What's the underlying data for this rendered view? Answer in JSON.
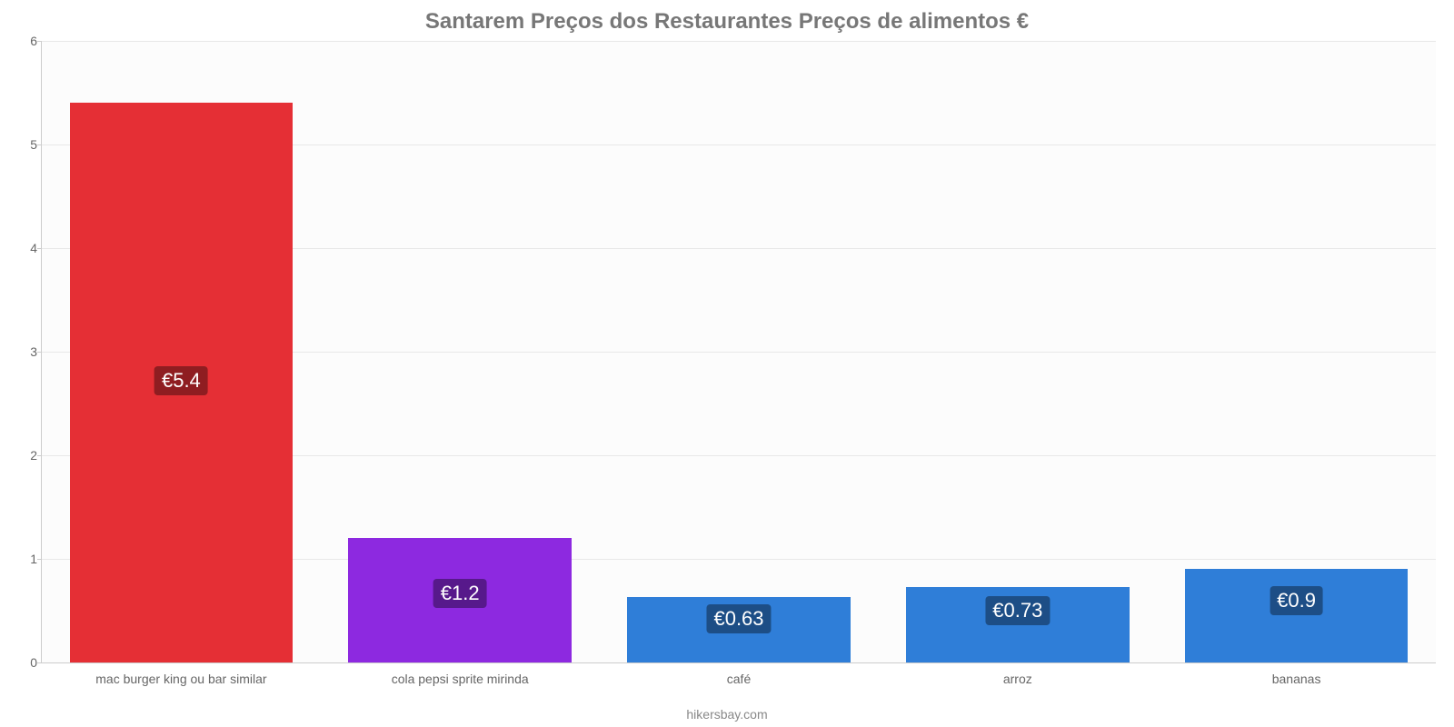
{
  "chart": {
    "type": "bar",
    "title": "Santarem Preços dos Restaurantes Preços de alimentos €",
    "title_color": "#777777",
    "title_fontsize": 24,
    "background_color": "#fcfcfc",
    "grid_color": "#e8e8e8",
    "axis_color": "#cccccc",
    "tick_color": "#666666",
    "tick_fontsize": 14,
    "y": {
      "min": 0,
      "max": 6,
      "ticks": [
        0,
        1,
        2,
        3,
        4,
        5,
        6
      ]
    },
    "bar_width_pct": 16,
    "bars": [
      {
        "category": "mac burger king ou bar similar",
        "value": 5.4,
        "display": "€5.4",
        "fill": "#e52f35",
        "label_bg": "#8f1d21",
        "label_y": 3.0
      },
      {
        "category": "cola pepsi sprite mirinda",
        "value": 1.2,
        "display": "€1.2",
        "fill": "#8d29e0",
        "label_bg": "#57198b",
        "label_y": 0.95
      },
      {
        "category": "café",
        "value": 0.63,
        "display": "€0.63",
        "fill": "#2f7ed8",
        "label_bg": "#1d4e86",
        "label_y": 0.7
      },
      {
        "category": "arroz",
        "value": 0.73,
        "display": "€0.73",
        "fill": "#2f7ed8",
        "label_bg": "#1d4e86",
        "label_y": 0.78
      },
      {
        "category": "bananas",
        "value": 0.9,
        "display": "€0.9",
        "fill": "#2f7ed8",
        "label_bg": "#1d4e86",
        "label_y": 0.88
      }
    ],
    "footer": "hikersbay.com"
  }
}
